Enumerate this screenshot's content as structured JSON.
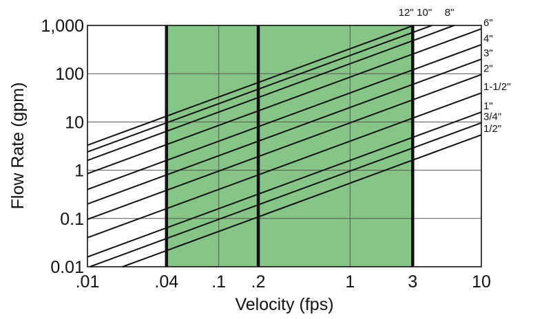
{
  "chart_data": {
    "type": "line",
    "title": "",
    "xlabel": "Velocity (fps)",
    "ylabel": "Flow Rate (gpm)",
    "x_scale": "log",
    "y_scale": "log",
    "xlim": [
      0.01,
      10
    ],
    "ylim": [
      0.01,
      1000
    ],
    "grid": true,
    "x_ticks": [
      {
        "value": 0.01,
        "label": ".01"
      },
      {
        "value": 0.04,
        "label": ".04"
      },
      {
        "value": 0.1,
        "label": ".1"
      },
      {
        "value": 0.2,
        "label": ".2"
      },
      {
        "value": 1,
        "label": "1"
      },
      {
        "value": 3,
        "label": "3"
      },
      {
        "value": 10,
        "label": "10"
      }
    ],
    "y_ticks": [
      {
        "value": 0.01,
        "label": "0.01"
      },
      {
        "value": 0.1,
        "label": "0.1"
      },
      {
        "value": 1,
        "label": "1"
      },
      {
        "value": 10,
        "label": "10"
      },
      {
        "value": 100,
        "label": "100"
      },
      {
        "value": 1000,
        "label": "1,000"
      }
    ],
    "x_gridlines": [
      0.04,
      0.1,
      0.2,
      1,
      3
    ],
    "y_gridlines": [
      0.1,
      1,
      10,
      100
    ],
    "highlight_band": {
      "x_from": 0.04,
      "x_to": 3,
      "color": "#86c487"
    },
    "emphasis_lines_x": [
      0.04,
      0.2,
      3
    ],
    "series": [
      {
        "name": "1/2\"",
        "x": [
          0.0185,
          10
        ],
        "y": [
          0.01,
          5.4
        ]
      },
      {
        "name": "3/4\"",
        "x": [
          0.01,
          10
        ],
        "y": [
          0.0096,
          9.6
        ]
      },
      {
        "name": "1\"",
        "x": [
          0.01,
          10
        ],
        "y": [
          0.016,
          16
        ]
      },
      {
        "name": "1-1/2\"",
        "x": [
          0.01,
          10
        ],
        "y": [
          0.04,
          40
        ]
      },
      {
        "name": "2\"",
        "x": [
          0.01,
          10
        ],
        "y": [
          0.096,
          96
        ]
      },
      {
        "name": "3\"",
        "x": [
          0.01,
          10
        ],
        "y": [
          0.2,
          200
        ]
      },
      {
        "name": "4\"",
        "x": [
          0.01,
          10
        ],
        "y": [
          0.4,
          400
        ]
      },
      {
        "name": "6\"",
        "x": [
          0.01,
          10
        ],
        "y": [
          0.85,
          850
        ]
      },
      {
        "name": "8\"",
        "x": [
          0.01,
          6.2
        ],
        "y": [
          1.6,
          1000
        ]
      },
      {
        "name": "10\"",
        "x": [
          0.01,
          4.2
        ],
        "y": [
          2.4,
          1000
        ]
      },
      {
        "name": "12\"",
        "x": [
          0.01,
          3.05
        ],
        "y": [
          3.3,
          1000
        ]
      }
    ]
  }
}
